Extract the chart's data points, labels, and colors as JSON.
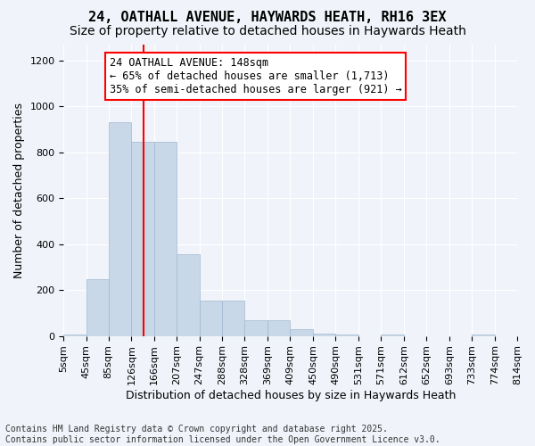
{
  "title_line1": "24, OATHALL AVENUE, HAYWARDS HEATH, RH16 3EX",
  "title_line2": "Size of property relative to detached houses in Haywards Heath",
  "xlabel": "Distribution of detached houses by size in Haywards Heath",
  "ylabel": "Number of detached properties",
  "bar_color": "#c8d8e8",
  "bar_edgecolor": "#a0b8d0",
  "vline_color": "red",
  "vline_x": 148,
  "annotation_title": "24 OATHALL AVENUE: 148sqm",
  "annotation_line2": "← 65% of detached houses are smaller (1,713)",
  "annotation_line3": "35% of semi-detached houses are larger (921) →",
  "bin_edges": [
    5,
    45,
    85,
    126,
    166,
    207,
    247,
    288,
    328,
    369,
    409,
    450,
    490,
    531,
    571,
    612,
    652,
    693,
    733,
    774,
    814
  ],
  "bin_labels": [
    "5sqm",
    "45sqm",
    "85sqm",
    "126sqm",
    "166sqm",
    "207sqm",
    "247sqm",
    "288sqm",
    "328sqm",
    "369sqm",
    "409sqm",
    "450sqm",
    "490sqm",
    "531sqm",
    "571sqm",
    "612sqm",
    "652sqm",
    "693sqm",
    "733sqm",
    "774sqm",
    "814sqm"
  ],
  "bar_heights": [
    5,
    248,
    930,
    848,
    848,
    355,
    155,
    155,
    68,
    68,
    30,
    12,
    5,
    0,
    5,
    0,
    0,
    0,
    5,
    0
  ],
  "ylim": [
    0,
    1270
  ],
  "yticks": [
    0,
    200,
    400,
    600,
    800,
    1000,
    1200
  ],
  "background_color": "#f0f4fa",
  "grid_color": "white",
  "footer_line1": "Contains HM Land Registry data © Crown copyright and database right 2025.",
  "footer_line2": "Contains public sector information licensed under the Open Government Licence v3.0.",
  "title_fontsize": 11,
  "subtitle_fontsize": 10,
  "axis_label_fontsize": 9,
  "tick_fontsize": 8,
  "annotation_fontsize": 8.5,
  "footer_fontsize": 7
}
